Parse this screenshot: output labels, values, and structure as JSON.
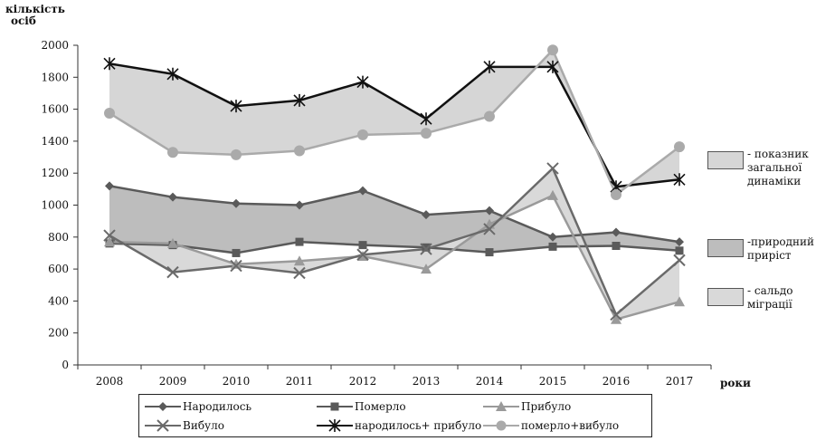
{
  "chart_data": {
    "type": "line",
    "ylabel": "кількість осіб",
    "ylabel_lines": [
      "кількість",
      "осіб"
    ],
    "xlabel": "роки",
    "x": [
      "2008",
      "2009",
      "2010",
      "2011",
      "2012",
      "2013",
      "2014",
      "2015",
      "2016",
      "2017"
    ],
    "yticks": [
      "0",
      "200",
      "400",
      "600",
      "800",
      "1000",
      "1200",
      "1400",
      "1600",
      "1800",
      "2000"
    ],
    "ylim": [
      0,
      2000
    ],
    "grid": false,
    "series": [
      {
        "name": "Народилось",
        "marker": "diamond",
        "color": "#5a5a5a",
        "values": [
          1120,
          1050,
          1010,
          1000,
          1090,
          940,
          965,
          800,
          830,
          770
        ]
      },
      {
        "name": "Померло",
        "marker": "square",
        "color": "#5a5a5a",
        "values": [
          760,
          750,
          700,
          770,
          750,
          735,
          705,
          740,
          745,
          715
        ]
      },
      {
        "name": "Прибуло",
        "marker": "triangle",
        "color": "#9a9a9a",
        "values": [
          770,
          760,
          630,
          650,
          680,
          600,
          880,
          1060,
          285,
          395
        ]
      },
      {
        "name": "Вибуло",
        "marker": "x",
        "color": "#6a6a6a",
        "values": [
          810,
          580,
          620,
          575,
          690,
          725,
          850,
          1230,
          315,
          655
        ]
      },
      {
        "name": "народилось+ прибуло",
        "marker": "star",
        "color": "#111111",
        "values": [
          1885,
          1820,
          1620,
          1655,
          1770,
          1540,
          1865,
          1865,
          1115,
          1160
        ]
      },
      {
        "name": "померло+вибуло",
        "marker": "circle",
        "color": "#aaaaaa",
        "values": [
          1575,
          1330,
          1315,
          1340,
          1440,
          1450,
          1555,
          1970,
          1065,
          1365
        ]
      }
    ],
    "areas": [
      {
        "label": "- показник загальної динаміки",
        "label_lines": [
          "- показник",
          "загальної",
          "динаміки"
        ],
        "between": [
          "народилось+ прибуло",
          "померло+вибуло"
        ],
        "color": "#d6d6d6"
      },
      {
        "label": "-природний приріст",
        "label_lines": [
          "-природний",
          "приріст"
        ],
        "between": [
          "Народилось",
          "Померло"
        ],
        "color": "#bdbdbd"
      },
      {
        "label": "- сальдо міграції",
        "label_lines": [
          "- сальдо",
          "міграції"
        ],
        "between": [
          "Прибуло",
          "Вибуло"
        ],
        "color": "#d9d9d9"
      }
    ],
    "legend_position": "bottom"
  }
}
